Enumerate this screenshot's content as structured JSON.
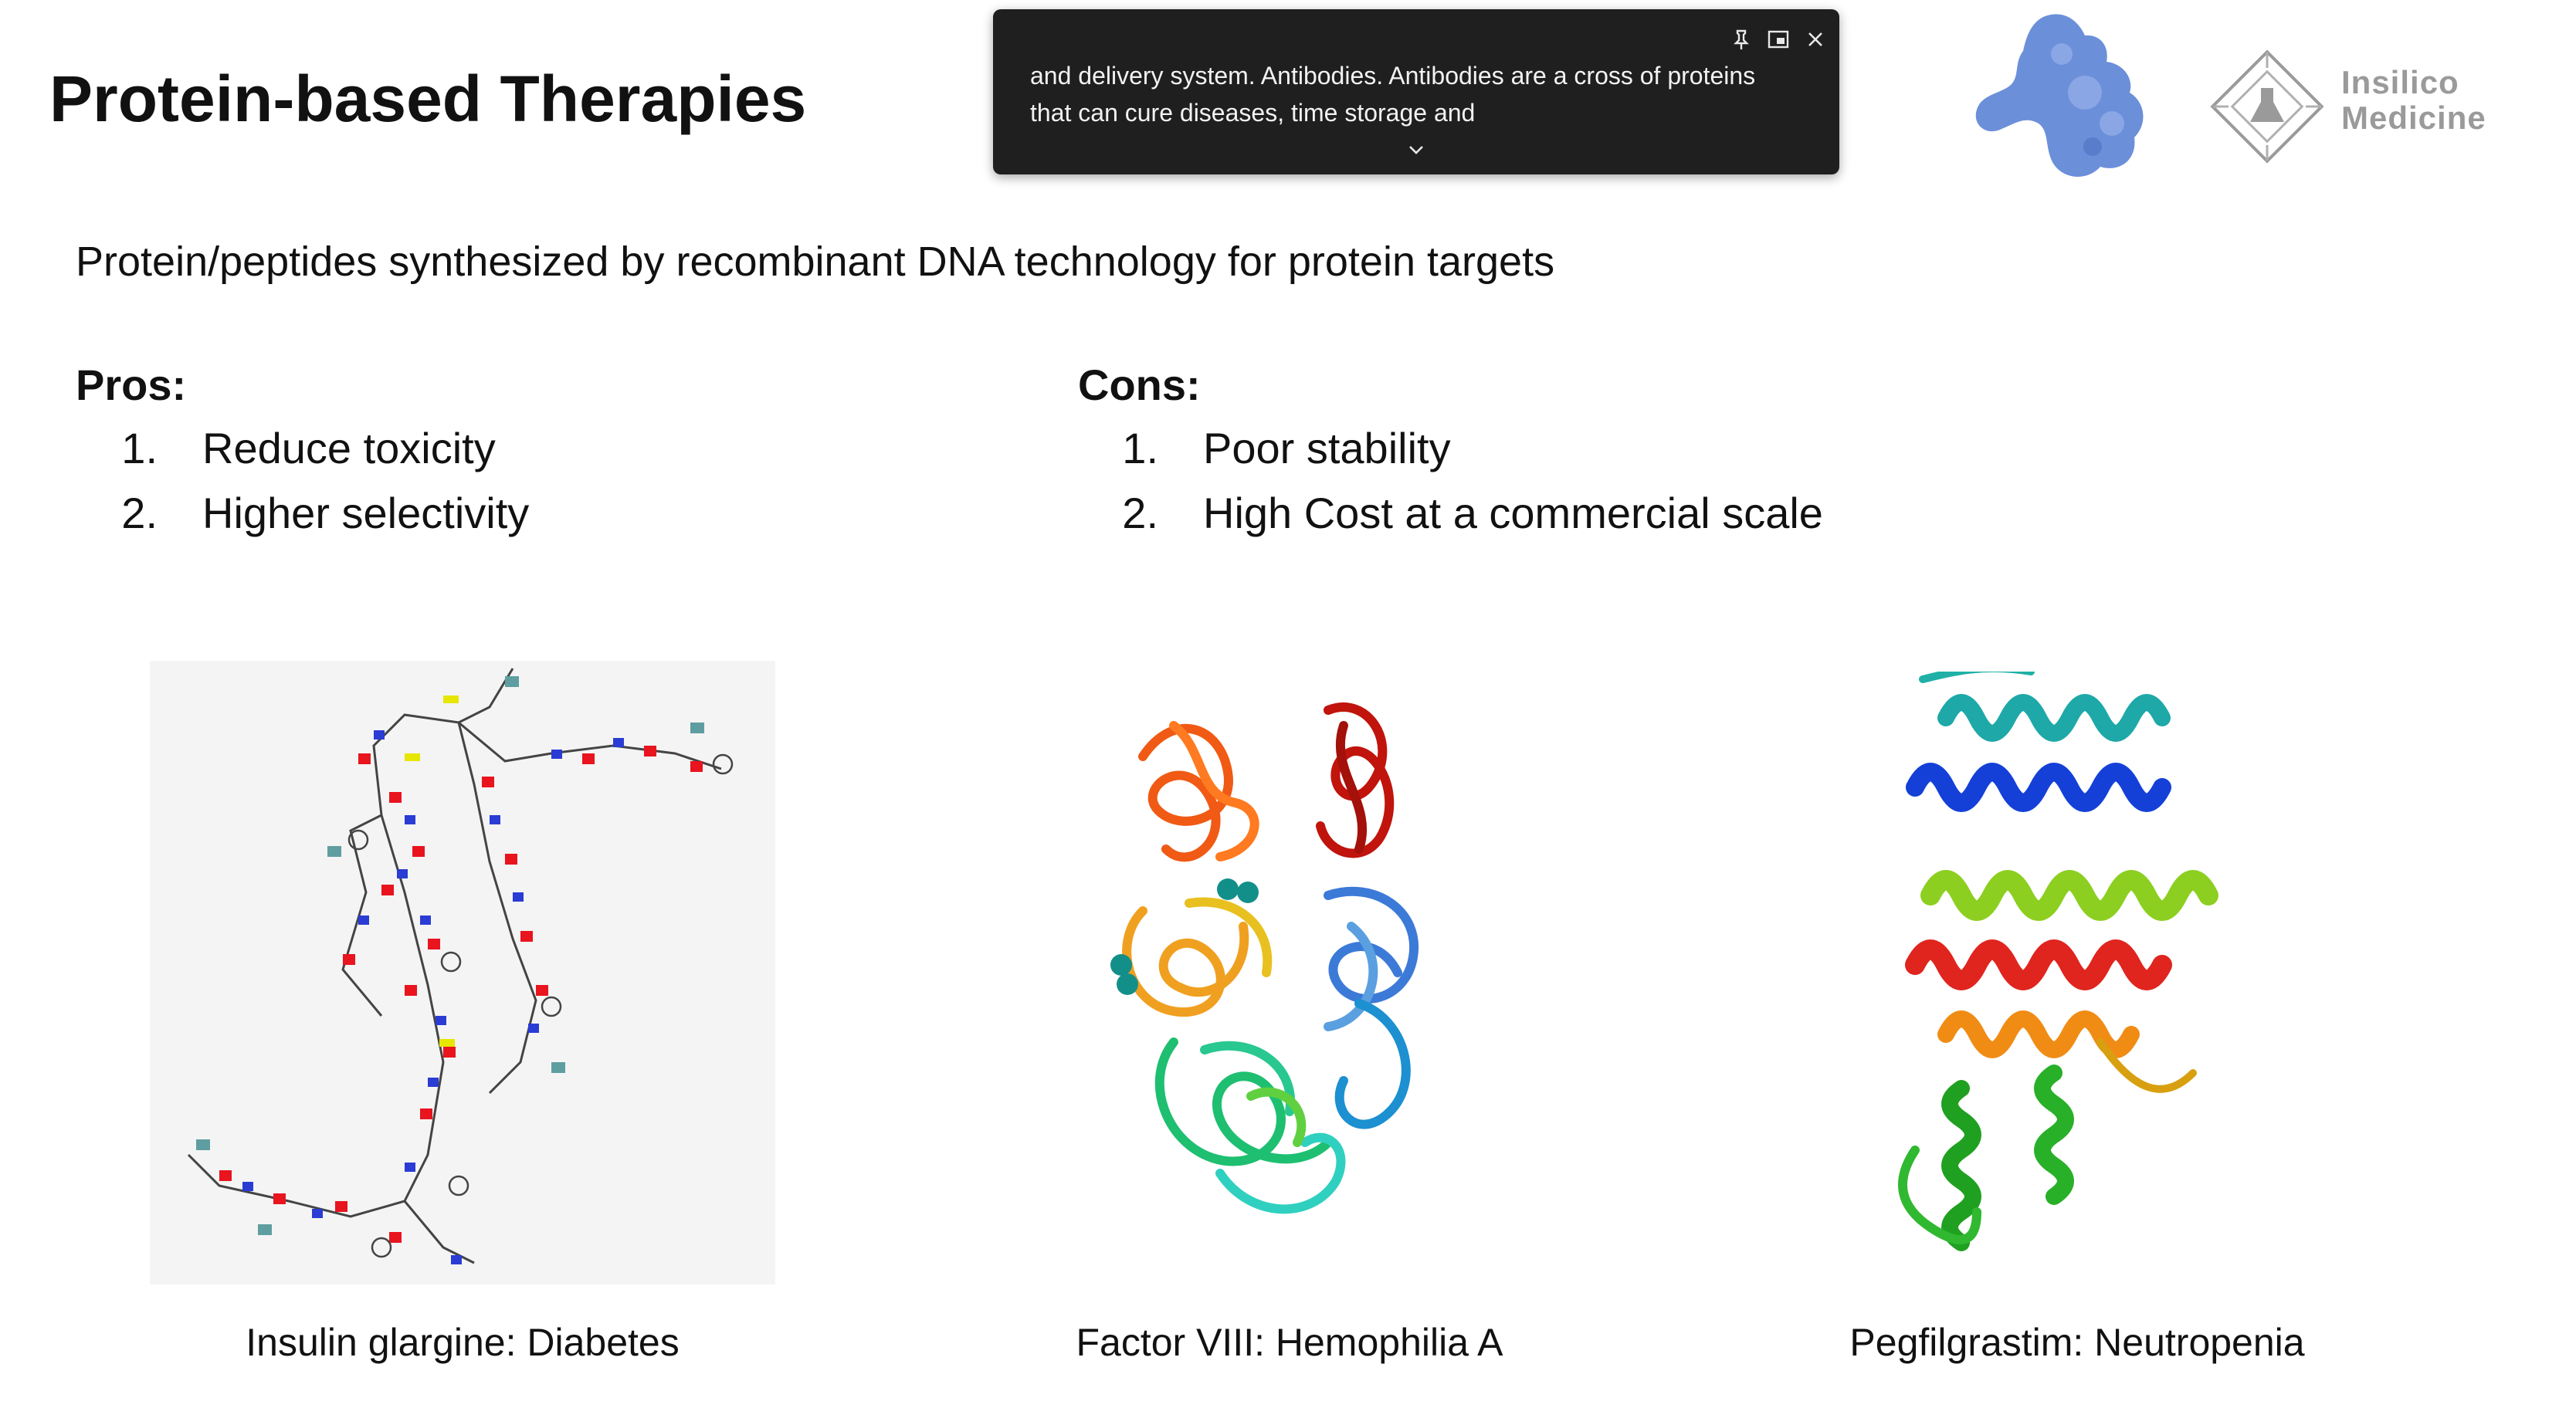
{
  "slide": {
    "title": "Protein-based Therapies",
    "subtitle": "Protein/peptides synthesized by recombinant DNA technology for protein targets",
    "pros": {
      "heading": "Pros:",
      "items": [
        {
          "num": "1.",
          "text": "Reduce toxicity"
        },
        {
          "num": "2.",
          "text": "Higher selectivity"
        }
      ]
    },
    "cons": {
      "heading": "Cons:",
      "items": [
        {
          "num": "1.",
          "text": "Poor stability"
        },
        {
          "num": "2.",
          "text": "High Cost at a commercial scale"
        }
      ]
    },
    "figures": [
      {
        "caption": "Insulin glargine: Diabetes"
      },
      {
        "caption": "Factor VIII: Hemophilia A"
      },
      {
        "caption": "Pegfilgrastim: Neutropenia"
      }
    ]
  },
  "logo": {
    "line1": "Insilico",
    "line2": "Medicine",
    "icon": "chip-flask-logo",
    "color": "#9a9a9a"
  },
  "caption_overlay": {
    "line1": "and delivery system. Antibodies. Antibodies are a cross of proteins",
    "line2": "that can cure diseases, time storage and",
    "icons": [
      "pin-icon",
      "window-icon",
      "close-icon",
      "chevron-down-icon"
    ]
  },
  "colors": {
    "accent_blob": "#6b8fd9",
    "overlay_bg": "#1f1f1f"
  }
}
